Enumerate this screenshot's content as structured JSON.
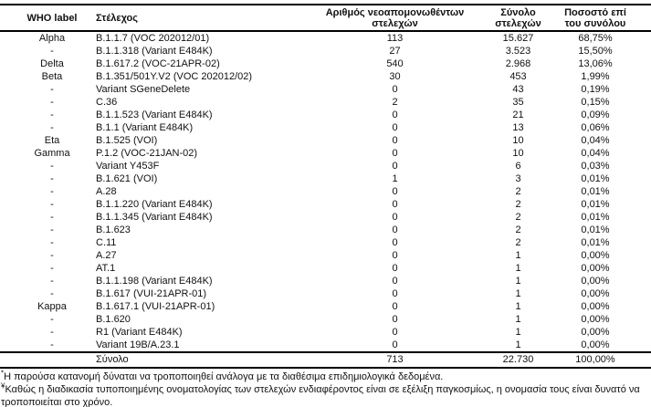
{
  "colors": {
    "text": "#111111",
    "border": "#000000",
    "background": "#ffffff"
  },
  "table": {
    "headers": {
      "who": "WHO label",
      "strain": "Στέλεχος",
      "new_isolates": "Αριθμός νεοαπομονωθέντων\nστελεχών",
      "total": "Σύνολο\nστελεχών",
      "pct": "Ποσοστό επί\nτου συνόλου"
    },
    "rows": [
      {
        "who": "Alpha",
        "strain": "B.1.1.7 (VOC 202012/01)",
        "new": "113",
        "total": "15.627",
        "pct": "68,75%"
      },
      {
        "who": "-",
        "strain": "B.1.1.318 (Variant E484K)",
        "new": "27",
        "total": "3.523",
        "pct": "15,50%"
      },
      {
        "who": "Delta",
        "strain": "B.1.617.2 (VOC-21APR-02)",
        "new": "540",
        "total": "2.968",
        "pct": "13,06%"
      },
      {
        "who": "Beta",
        "strain": "B.1.351/501Y.V2 (VOC 202012/02)",
        "new": "30",
        "total": "453",
        "pct": "1,99%"
      },
      {
        "who": "-",
        "strain": "Variant SGeneDelete",
        "new": "0",
        "total": "43",
        "pct": "0,19%"
      },
      {
        "who": "-",
        "strain": "C.36",
        "new": "2",
        "total": "35",
        "pct": "0,15%"
      },
      {
        "who": "-",
        "strain": "B.1.1.523 (Variant E484K)",
        "new": "0",
        "total": "21",
        "pct": "0,09%"
      },
      {
        "who": "-",
        "strain": "B.1.1 (Variant E484K)",
        "new": "0",
        "total": "13",
        "pct": "0,06%"
      },
      {
        "who": "Eta",
        "strain": "B.1.525 (VOI)",
        "new": "0",
        "total": "10",
        "pct": "0,04%"
      },
      {
        "who": "Gamma",
        "strain": "P.1.2 (VOC-21JAN-02)",
        "new": "0",
        "total": "10",
        "pct": "0,04%"
      },
      {
        "who": "-",
        "strain": "Variant Y453F",
        "new": "0",
        "total": "6",
        "pct": "0,03%"
      },
      {
        "who": "-",
        "strain": "B.1.621 (VOI)",
        "new": "1",
        "total": "3",
        "pct": "0,01%"
      },
      {
        "who": "-",
        "strain": "A.28",
        "new": "0",
        "total": "2",
        "pct": "0,01%"
      },
      {
        "who": "-",
        "strain": "B.1.1.220 (Variant E484K)",
        "new": "0",
        "total": "2",
        "pct": "0,01%"
      },
      {
        "who": "-",
        "strain": "B.1.1.345 (Variant E484K)",
        "new": "0",
        "total": "2",
        "pct": "0,01%"
      },
      {
        "who": "-",
        "strain": "B.1.623",
        "new": "0",
        "total": "2",
        "pct": "0,01%"
      },
      {
        "who": "-",
        "strain": "C.11",
        "new": "0",
        "total": "2",
        "pct": "0,01%"
      },
      {
        "who": "-",
        "strain": "A.27",
        "new": "0",
        "total": "1",
        "pct": "0,00%"
      },
      {
        "who": "-",
        "strain": "AT.1",
        "new": "0",
        "total": "1",
        "pct": "0,00%"
      },
      {
        "who": "-",
        "strain": "B.1.1.198 (Variant E484K)",
        "new": "0",
        "total": "1",
        "pct": "0,00%"
      },
      {
        "who": "-",
        "strain": "B.1.617 (VUI-21APR-01)",
        "new": "0",
        "total": "1",
        "pct": "0,00%"
      },
      {
        "who": "Kappa",
        "strain": "B.1.617.1 (VUI-21APR-01)",
        "new": "0",
        "total": "1",
        "pct": "0,00%"
      },
      {
        "who": "-",
        "strain": "B.1.620",
        "new": "0",
        "total": "1",
        "pct": "0,00%"
      },
      {
        "who": "-",
        "strain": "R1 (Variant E484K)",
        "new": "0",
        "total": "1",
        "pct": "0,00%"
      },
      {
        "who": "-",
        "strain": "Variant 19B/A.23.1",
        "new": "0",
        "total": "1",
        "pct": "0,00%"
      }
    ],
    "total_row": {
      "who": "",
      "label": "Σύνολο",
      "new": "713",
      "total": "22.730",
      "pct": "100,00%"
    }
  },
  "footnotes": [
    {
      "marker": "*",
      "text": "Η παρούσα κατανομή δύναται να τροποποιηθεί ανάλογα με τα διαθέσιμα επιδημιολογικά δεδομένα."
    },
    {
      "marker": "¥",
      "text": "Καθώς η διαδικασία τυποποιημένης ονοματολογίας των στελεχών ενδιαφέροντος είναι σε εξέλιξη παγκοσμίως, η ονομασία τους είναι δυνατό να τροποποιείται στο χρόνο."
    }
  ]
}
